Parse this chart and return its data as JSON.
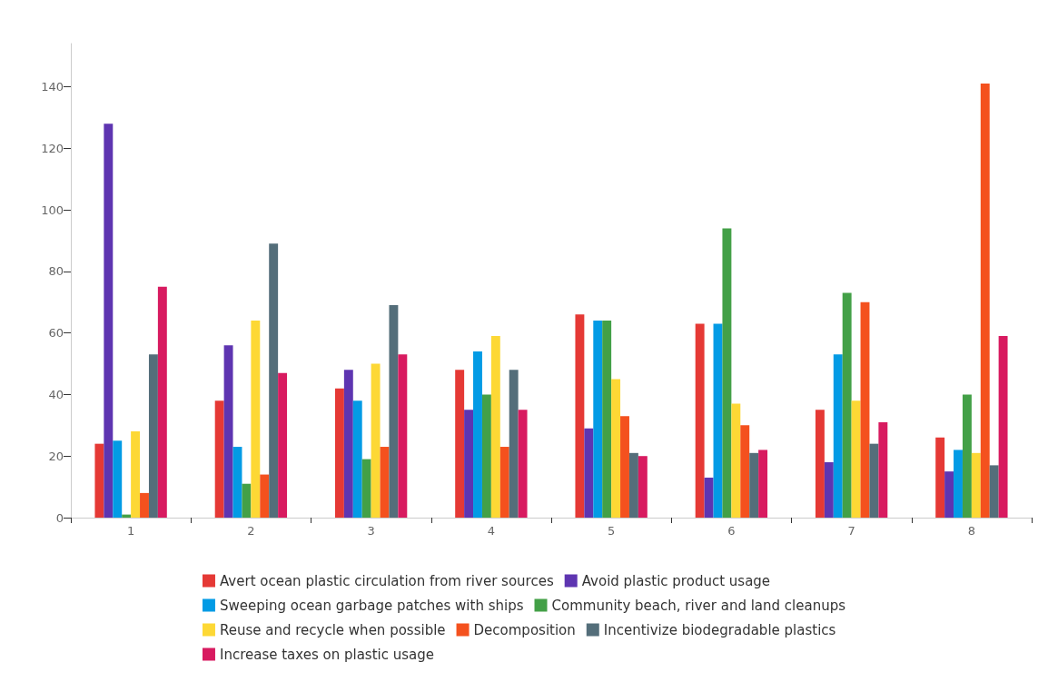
{
  "chart_data": {
    "type": "bar",
    "categories": [
      "1",
      "2",
      "3",
      "4",
      "5",
      "6",
      "7",
      "8"
    ],
    "series": [
      {
        "name": "Avert ocean plastic circulation from river sources",
        "color": "#e53935",
        "values": [
          24,
          38,
          42,
          48,
          66,
          63,
          35,
          26
        ]
      },
      {
        "name": "Avoid plastic product usage",
        "color": "#5e35b1",
        "values": [
          128,
          56,
          48,
          35,
          29,
          13,
          18,
          15
        ]
      },
      {
        "name": "Sweeping ocean garbage patches with ships",
        "color": "#039be5",
        "values": [
          25,
          23,
          38,
          54,
          64,
          63,
          53,
          22
        ]
      },
      {
        "name": "Community beach, river and land cleanups",
        "color": "#43a047",
        "values": [
          1,
          11,
          19,
          40,
          64,
          94,
          73,
          40
        ]
      },
      {
        "name": "Reuse and recycle when possible",
        "color": "#fdd835",
        "values": [
          28,
          64,
          50,
          59,
          45,
          37,
          38,
          21
        ]
      },
      {
        "name": "Decomposition",
        "color": "#f4511e",
        "values": [
          8,
          14,
          23,
          23,
          33,
          30,
          70,
          141
        ]
      },
      {
        "name": "Incentivize biodegradable plastics",
        "color": "#546e7a",
        "values": [
          53,
          89,
          69,
          48,
          21,
          21,
          24,
          17
        ]
      },
      {
        "name": "Increase taxes on plastic usage",
        "color": "#d81b60",
        "values": [
          75,
          47,
          53,
          35,
          20,
          22,
          31,
          59
        ]
      }
    ],
    "ylim": [
      0,
      154
    ],
    "yticks": [
      0,
      20,
      40,
      60,
      80,
      100,
      120,
      140
    ],
    "grid": false,
    "legend": "bottom"
  }
}
